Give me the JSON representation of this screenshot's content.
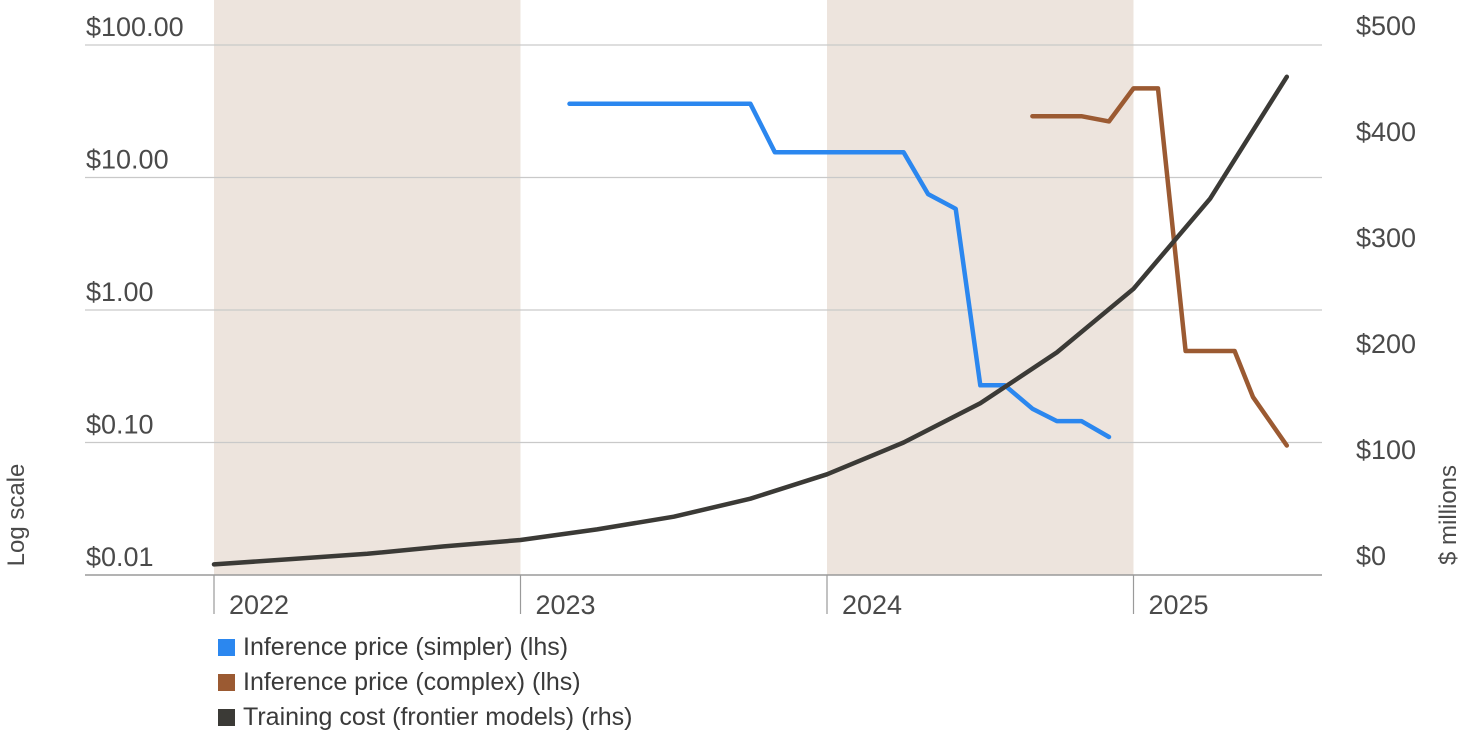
{
  "chart_data": {
    "type": "line",
    "left_axis": {
      "title": "Log scale",
      "scale": "log",
      "range": [
        0.01,
        100
      ],
      "ticks": [
        0.01,
        0.1,
        1,
        10,
        100
      ],
      "tick_labels": [
        "$0.01",
        "$0.10",
        "$1.00",
        "$10.00",
        "$100.00"
      ]
    },
    "right_axis": {
      "title": "$ millions",
      "scale": "linear",
      "range": [
        0,
        500
      ],
      "ticks": [
        0,
        100,
        200,
        300,
        400,
        500
      ],
      "tick_labels": [
        "$0",
        "$100",
        "$200",
        "$300",
        "$400",
        "$500"
      ]
    },
    "x_axis": {
      "range": [
        2022,
        2026
      ],
      "tick_labels": [
        "2022",
        "2023",
        "2024",
        "2025"
      ],
      "shaded_years": [
        2022,
        2024
      ]
    },
    "grid": true,
    "legend_position": "bottom-left",
    "series": [
      {
        "name": "Inference price (simpler) (lhs)",
        "axis": "left",
        "color": "#2b87ef",
        "points": [
          [
            2023.16,
            36
          ],
          [
            2023.75,
            36
          ],
          [
            2023.83,
            15.5
          ],
          [
            2024.25,
            15.5
          ],
          [
            2024.33,
            7.5
          ],
          [
            2024.42,
            5.8
          ],
          [
            2024.5,
            0.27
          ],
          [
            2024.58,
            0.27
          ],
          [
            2024.67,
            0.18
          ],
          [
            2024.75,
            0.145
          ],
          [
            2024.83,
            0.145
          ],
          [
            2024.92,
            0.11
          ]
        ]
      },
      {
        "name": "Inference price (complex) (lhs)",
        "axis": "left",
        "color": "#9b5a32",
        "points": [
          [
            2024.67,
            29
          ],
          [
            2024.83,
            29
          ],
          [
            2024.92,
            26.5
          ],
          [
            2025.0,
            47
          ],
          [
            2025.08,
            47
          ],
          [
            2025.17,
            0.49
          ],
          [
            2025.33,
            0.49
          ],
          [
            2025.39,
            0.22
          ],
          [
            2025.5,
            0.095
          ]
        ]
      },
      {
        "name": "Training cost (frontier models) (rhs)",
        "axis": "right",
        "color": "#3b3a36",
        "points": [
          [
            2022.0,
            10
          ],
          [
            2022.25,
            15
          ],
          [
            2022.5,
            20
          ],
          [
            2022.75,
            27
          ],
          [
            2023.0,
            33
          ],
          [
            2023.25,
            43
          ],
          [
            2023.5,
            55
          ],
          [
            2023.75,
            72
          ],
          [
            2024.0,
            95
          ],
          [
            2024.25,
            125
          ],
          [
            2024.5,
            162
          ],
          [
            2024.75,
            210
          ],
          [
            2025.0,
            270
          ],
          [
            2025.25,
            355
          ],
          [
            2025.5,
            470
          ]
        ]
      }
    ]
  }
}
